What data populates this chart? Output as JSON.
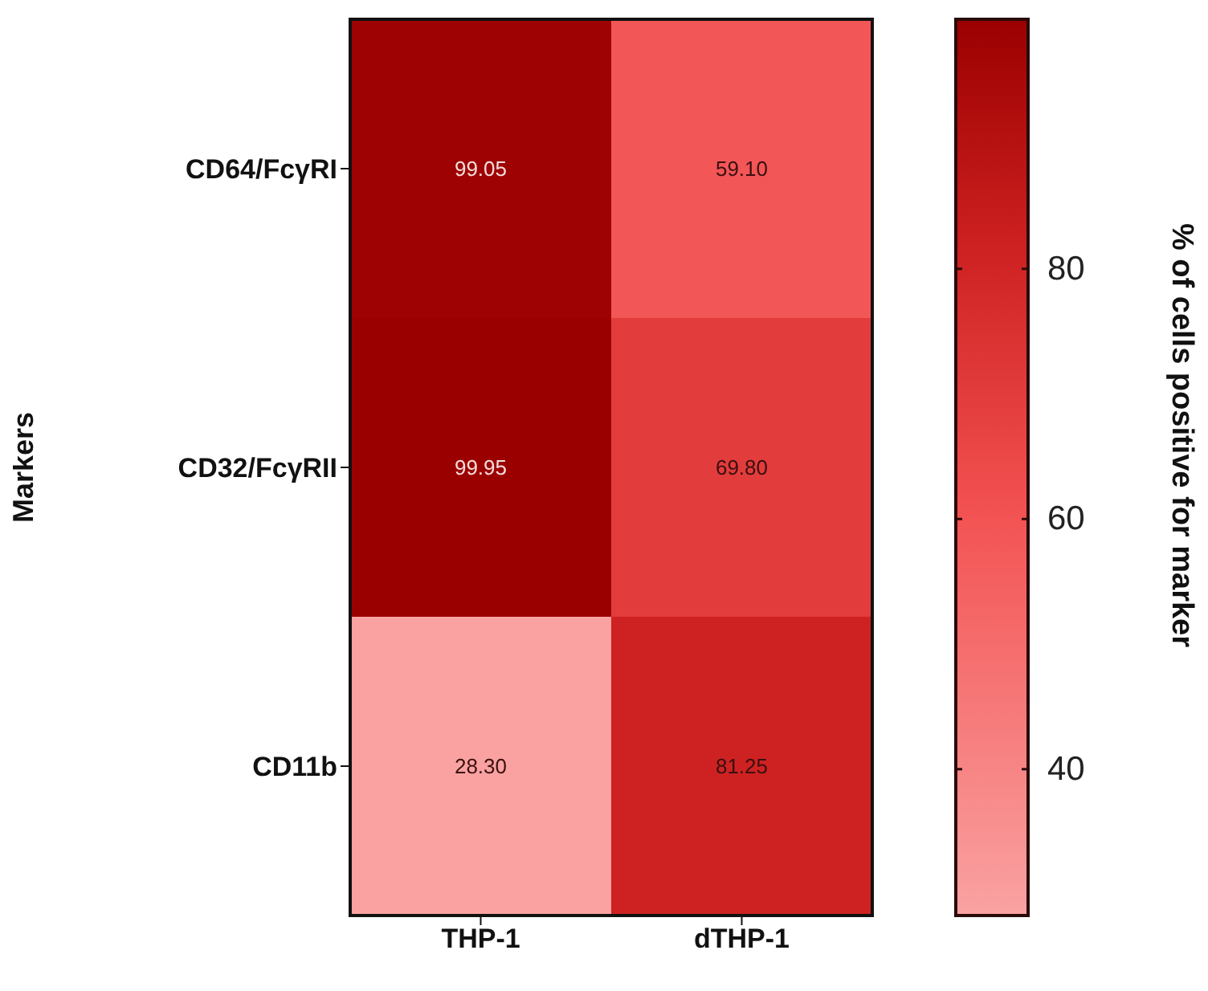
{
  "chart_data": {
    "type": "heatmap",
    "ylabel": "Markers",
    "clabel": "% of cells positive for marker",
    "categories": [
      "THP-1",
      "dTHP-1"
    ],
    "y_categories": [
      "CD64/FcγRI",
      "CD32/FcγRII",
      "CD11b"
    ],
    "cells": [
      [
        99.05,
        59.1
      ],
      [
        99.95,
        69.8
      ],
      [
        28.3,
        81.25
      ]
    ],
    "cell_labels": [
      [
        "99.05",
        "59.10"
      ],
      [
        "99.95",
        "69.80"
      ],
      [
        "28.30",
        "81.25"
      ]
    ],
    "data_labels": true,
    "clim": [
      28.3,
      99.95
    ],
    "cticks": [
      40,
      60,
      80
    ]
  }
}
